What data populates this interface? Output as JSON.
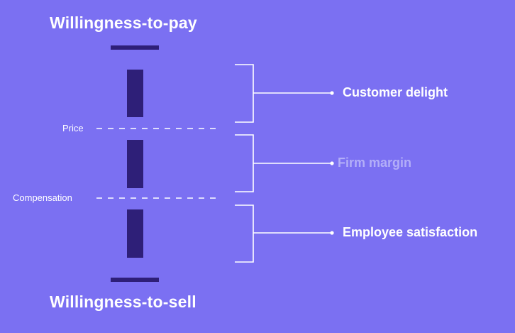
{
  "diagram": {
    "top_label": "Willingness-to-pay",
    "bottom_label": "Willingness-to-sell",
    "price_label": "Price",
    "compensation_label": "Compensation",
    "segments": [
      {
        "label": "Customer delight",
        "state": "active"
      },
      {
        "label": "Firm margin",
        "state": "faded"
      },
      {
        "label": "Employee satisfaction",
        "state": "active"
      }
    ]
  },
  "colors": {
    "background": "#7b70f2",
    "bar": "#2e1f78",
    "line": "#ffffff",
    "faded_text": "#b3aef8"
  }
}
